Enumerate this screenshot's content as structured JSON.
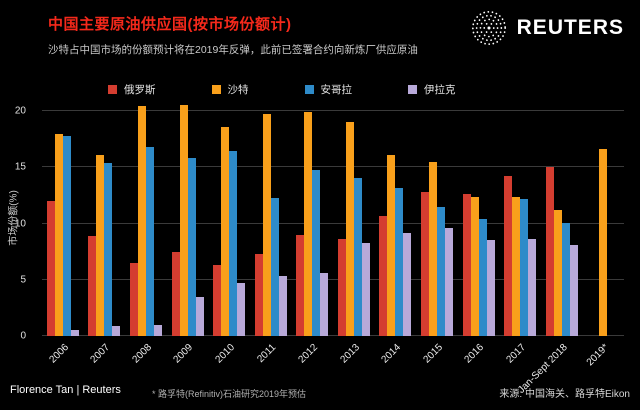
{
  "colors": {
    "background": "#000000",
    "title": "#f5291b",
    "text": "#ffffff",
    "muted": "#c9c9c9",
    "gridline": "#3a3a3a"
  },
  "header": {
    "title": "中国主要原油供应国(按市场份额计)",
    "subtitle": "沙特占中国市场的份额预计将在2019年反弹，此前已签署合约向新炼厂供应原油",
    "brand": "REUTERS"
  },
  "chart_data": {
    "type": "bar",
    "title": "中国主要原油供应国(按市场份额计)",
    "xlabel": "",
    "ylabel": "市场份额(%)",
    "ylim": [
      0,
      21
    ],
    "yticks": [
      0,
      5,
      10,
      15,
      20
    ],
    "grid": "horizontal",
    "legend_position": "top",
    "categories": [
      "2006",
      "2007",
      "2008",
      "2009",
      "2010",
      "2011",
      "2012",
      "2013",
      "2014",
      "2015",
      "2016",
      "2017",
      "Jan-Sept 2018",
      "2019*"
    ],
    "series": [
      {
        "name": "俄罗斯",
        "color": "#d43d30",
        "values": [
          12.0,
          8.9,
          6.5,
          7.5,
          6.3,
          7.3,
          9.0,
          8.6,
          10.7,
          12.8,
          12.6,
          14.2,
          15.0,
          null
        ]
      },
      {
        "name": "沙特",
        "color": "#f9a01b",
        "values": [
          18.0,
          16.1,
          20.5,
          20.6,
          18.6,
          19.8,
          19.9,
          19.0,
          16.1,
          15.5,
          12.4,
          12.4,
          11.2,
          16.6
        ]
      },
      {
        "name": "安哥拉",
        "color": "#2e8bc9",
        "values": [
          17.8,
          15.4,
          16.8,
          15.8,
          16.5,
          12.3,
          14.8,
          14.1,
          13.2,
          11.5,
          10.4,
          12.2,
          10.1,
          null
        ]
      },
      {
        "name": "伊拉克",
        "color": "#b8a9d9",
        "values": [
          0.5,
          0.9,
          1.0,
          3.5,
          4.7,
          5.3,
          5.6,
          8.3,
          9.2,
          9.6,
          8.5,
          8.6,
          8.1,
          null
        ]
      }
    ]
  },
  "footer": {
    "credit": "Florence Tan | Reuters",
    "note": "* 路孚特(Refinitiv)石油研究2019年预估",
    "source": "来源: 中国海关、路孚特Eikon"
  }
}
